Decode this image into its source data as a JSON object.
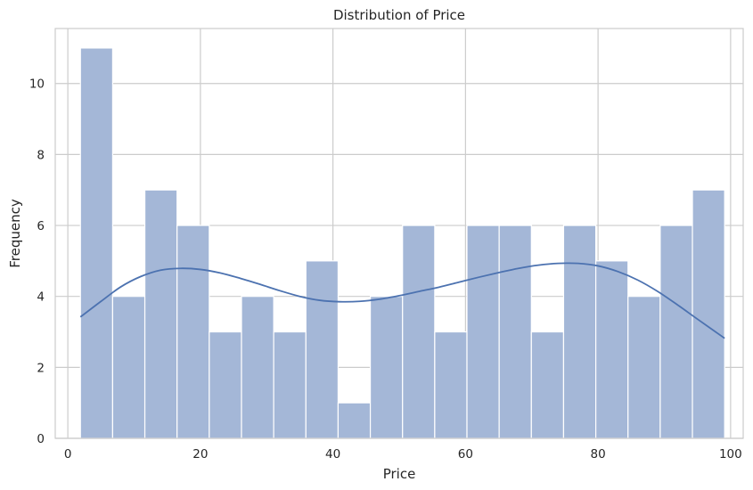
{
  "chart_data": {
    "type": "bar",
    "title": "Distribution of Price",
    "xlabel": "Price",
    "ylabel": "Frequency",
    "xlim": [
      -1.9,
      101.9
    ],
    "ylim": [
      0,
      11.55
    ],
    "x_ticks": [
      0,
      20,
      40,
      60,
      80,
      100
    ],
    "y_ticks": [
      0,
      2,
      4,
      6,
      8,
      10
    ],
    "grid": true,
    "bin_width": 4.86,
    "bins": [
      {
        "x0": 1.9,
        "count": 11
      },
      {
        "x0": 6.76,
        "count": 4
      },
      {
        "x0": 11.62,
        "count": 7
      },
      {
        "x0": 16.48,
        "count": 6
      },
      {
        "x0": 21.34,
        "count": 3
      },
      {
        "x0": 26.2,
        "count": 4
      },
      {
        "x0": 31.06,
        "count": 3
      },
      {
        "x0": 35.92,
        "count": 5
      },
      {
        "x0": 40.78,
        "count": 1
      },
      {
        "x0": 45.64,
        "count": 4
      },
      {
        "x0": 50.5,
        "count": 6
      },
      {
        "x0": 55.36,
        "count": 3
      },
      {
        "x0": 60.22,
        "count": 6
      },
      {
        "x0": 65.08,
        "count": 6
      },
      {
        "x0": 69.94,
        "count": 3
      },
      {
        "x0": 74.8,
        "count": 6
      },
      {
        "x0": 79.66,
        "count": 5
      },
      {
        "x0": 84.52,
        "count": 4
      },
      {
        "x0": 89.38,
        "count": 6
      },
      {
        "x0": 94.24,
        "count": 7
      }
    ],
    "kde": {
      "x": [
        1.9,
        5,
        8,
        11,
        14,
        17,
        20,
        23,
        26,
        29,
        32,
        35,
        38,
        41,
        44,
        47,
        50,
        53,
        56,
        59,
        62,
        65,
        68,
        71,
        74,
        77,
        80,
        83,
        86,
        89,
        92,
        95,
        99.1
      ],
      "y": [
        3.42,
        3.86,
        4.27,
        4.56,
        4.74,
        4.79,
        4.76,
        4.66,
        4.51,
        4.34,
        4.16,
        4.0,
        3.89,
        3.85,
        3.86,
        3.92,
        4.02,
        4.14,
        4.26,
        4.4,
        4.54,
        4.67,
        4.79,
        4.88,
        4.93,
        4.93,
        4.86,
        4.7,
        4.46,
        4.14,
        3.76,
        3.36,
        2.82
      ]
    },
    "colors": {
      "bar": "#a4b7d7",
      "line": "#4c72b0"
    }
  }
}
